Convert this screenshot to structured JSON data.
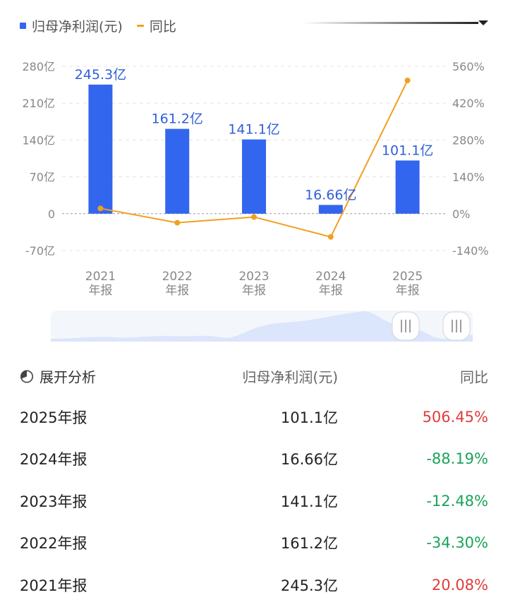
{
  "legend": {
    "series1_label": "归母净利润(元)",
    "series2_label": "同比"
  },
  "colors": {
    "bar": "#3366ee",
    "line": "#f0a020",
    "positive": "#e03c3c",
    "negative": "#1aa35a"
  },
  "chart_data": {
    "type": "bar",
    "categories": [
      "2021\n年报",
      "2022\n年报",
      "2023\n年报",
      "2024\n年报",
      "2025\n年报"
    ],
    "series": [
      {
        "name": "归母净利润(元)",
        "type": "bar",
        "axis": "left",
        "values": [
          245.3,
          161.2,
          141.1,
          16.66,
          101.1
        ],
        "labels": [
          "245.3亿",
          "161.2亿",
          "141.1亿",
          "16.66亿",
          "101.1亿"
        ]
      },
      {
        "name": "同比",
        "type": "line",
        "axis": "right",
        "values": [
          20.08,
          -34.3,
          -12.48,
          -88.19,
          506.45
        ]
      }
    ],
    "left_axis": {
      "ticks": [
        280,
        210,
        140,
        70,
        0,
        -70
      ],
      "tick_labels": [
        "280亿",
        "210亿",
        "140亿",
        "70亿",
        "0",
        "-70亿"
      ],
      "ylim": [
        -70,
        280
      ]
    },
    "right_axis": {
      "ticks": [
        560,
        420,
        280,
        140,
        0,
        -140
      ],
      "tick_labels": [
        "560%",
        "420%",
        "280%",
        "140%",
        "0%",
        "-140%"
      ],
      "ylim": [
        -140,
        560
      ]
    },
    "grid": true,
    "legend_position": "top-left"
  },
  "table": {
    "header": {
      "expand_label": "展开分析",
      "value_label": "归母净利润(元)",
      "yoy_label": "同比"
    },
    "rows": [
      {
        "label": "2025年报",
        "value": "101.1亿",
        "yoy": "506.45%",
        "trend": "pos"
      },
      {
        "label": "2024年报",
        "value": "16.66亿",
        "yoy": "-88.19%",
        "trend": "neg"
      },
      {
        "label": "2023年报",
        "value": "141.1亿",
        "yoy": "-12.48%",
        "trend": "neg"
      },
      {
        "label": "2022年报",
        "value": "161.2亿",
        "yoy": "-34.30%",
        "trend": "neg"
      },
      {
        "label": "2021年报",
        "value": "245.3亿",
        "yoy": "20.08%",
        "trend": "pos"
      }
    ]
  }
}
